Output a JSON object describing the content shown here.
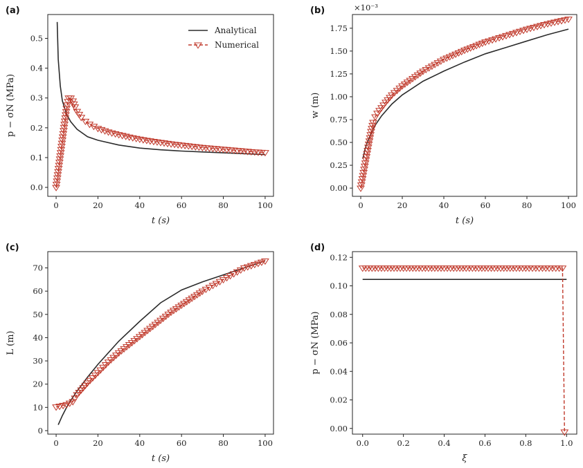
{
  "style": {
    "analytical_color": "#2b2b2b",
    "numerical_color": "#c0392b"
  },
  "chart_data": [
    {
      "panel": "(a)",
      "type": "line",
      "xlabel": "t (s)",
      "ylabel": "p − σN (MPa)",
      "xlim": [
        -4,
        104
      ],
      "ylim": [
        -0.03,
        0.58
      ],
      "xticks": [
        0,
        20,
        40,
        60,
        80,
        100
      ],
      "yticks": [
        0.0,
        0.1,
        0.2,
        0.3,
        0.4,
        0.5
      ],
      "ytick_labels": [
        "0.0",
        "0.1",
        "0.2",
        "0.3",
        "0.4",
        "0.5"
      ],
      "legend": {
        "position": "top-right",
        "entries": [
          "Analytical",
          "Numerical"
        ]
      },
      "series": [
        {
          "name": "Analytical",
          "style": "solid",
          "x": [
            0.5,
            1,
            2,
            3,
            5,
            7,
            10,
            15,
            20,
            30,
            40,
            50,
            60,
            70,
            80,
            90,
            100
          ],
          "y": [
            0.555,
            0.43,
            0.34,
            0.29,
            0.245,
            0.22,
            0.195,
            0.17,
            0.158,
            0.142,
            0.132,
            0.126,
            0.122,
            0.119,
            0.116,
            0.113,
            0.11
          ]
        },
        {
          "name": "Numerical",
          "style": "dashed-triangle",
          "x": [
            0,
            5,
            6,
            7,
            8,
            9,
            10,
            12,
            14,
            16,
            18,
            20,
            25,
            30,
            35,
            40,
            45,
            50,
            55,
            60,
            65,
            70,
            75,
            80,
            85,
            90,
            95,
            100
          ],
          "y": [
            0.0,
            0.265,
            0.3,
            0.3,
            0.29,
            0.27,
            0.255,
            0.235,
            0.222,
            0.212,
            0.205,
            0.198,
            0.186,
            0.177,
            0.169,
            0.162,
            0.156,
            0.151,
            0.146,
            0.142,
            0.138,
            0.134,
            0.131,
            0.128,
            0.125,
            0.122,
            0.119,
            0.117
          ]
        }
      ]
    },
    {
      "panel": "(b)",
      "type": "line",
      "xlabel": "t (s)",
      "ylabel": "w (m)",
      "scale_label": "×10⁻³",
      "xlim": [
        -4,
        104
      ],
      "ylim": [
        -0.09,
        1.9
      ],
      "xticks": [
        0,
        20,
        40,
        60,
        80,
        100
      ],
      "yticks": [
        0.0,
        0.25,
        0.5,
        0.75,
        1.0,
        1.25,
        1.5,
        1.75
      ],
      "ytick_labels": [
        "0.00",
        "0.25",
        "0.50",
        "0.75",
        "1.00",
        "1.25",
        "1.50",
        "1.75"
      ],
      "series": [
        {
          "name": "Analytical",
          "style": "solid",
          "x": [
            1,
            2,
            3,
            5,
            7,
            10,
            15,
            20,
            30,
            40,
            50,
            60,
            70,
            80,
            90,
            100
          ],
          "y": [
            0.32,
            0.42,
            0.49,
            0.6,
            0.69,
            0.79,
            0.92,
            1.02,
            1.17,
            1.28,
            1.38,
            1.47,
            1.54,
            1.61,
            1.68,
            1.74
          ]
        },
        {
          "name": "Numerical",
          "style": "dashed-triangle",
          "x": [
            0,
            5,
            6,
            7,
            8,
            10,
            12,
            15,
            20,
            25,
            30,
            40,
            50,
            60,
            70,
            80,
            90,
            100
          ],
          "y": [
            0.0,
            0.62,
            0.72,
            0.78,
            0.82,
            0.88,
            0.94,
            1.02,
            1.12,
            1.2,
            1.28,
            1.41,
            1.51,
            1.6,
            1.67,
            1.74,
            1.8,
            1.85
          ]
        }
      ]
    },
    {
      "panel": "(c)",
      "type": "line",
      "xlabel": "t (s)",
      "ylabel": "L (m)",
      "xlim": [
        -4,
        104
      ],
      "ylim": [
        -1.5,
        77
      ],
      "xticks": [
        0,
        20,
        40,
        60,
        80,
        100
      ],
      "yticks": [
        0,
        10,
        20,
        30,
        40,
        50,
        60,
        70
      ],
      "ytick_labels": [
        "0",
        "10",
        "20",
        "30",
        "40",
        "50",
        "60",
        "70"
      ],
      "series": [
        {
          "name": "Analytical",
          "style": "solid",
          "x": [
            1,
            2,
            3,
            5,
            7,
            10,
            15,
            20,
            30,
            40,
            50,
            60,
            70,
            80,
            90,
            100
          ],
          "y": [
            2.5,
            4.5,
            6.5,
            10.0,
            13.0,
            17.0,
            23.0,
            28.5,
            38.5,
            47.0,
            55.0,
            60.5,
            64.0,
            67.0,
            70.0,
            73.0
          ]
        },
        {
          "name": "Numerical",
          "style": "dashed-triangle",
          "x": [
            0,
            5,
            8,
            10,
            15,
            20,
            25,
            30,
            35,
            40,
            45,
            50,
            55,
            60,
            65,
            70,
            75,
            80,
            85,
            90,
            95,
            100
          ],
          "y": [
            10.2,
            11.2,
            12.5,
            15.5,
            20.5,
            25.0,
            29.5,
            33.5,
            37.0,
            40.5,
            44.0,
            47.5,
            51.0,
            54.0,
            57.0,
            60.0,
            62.5,
            65.0,
            67.5,
            70.0,
            71.5,
            73.0
          ]
        }
      ]
    },
    {
      "panel": "(d)",
      "type": "line",
      "xlabel": "ξ",
      "ylabel": "p − σN (MPa)",
      "xlim": [
        -0.05,
        1.05
      ],
      "ylim": [
        -0.004,
        0.124
      ],
      "xticks": [
        0.0,
        0.2,
        0.4,
        0.6,
        0.8,
        1.0
      ],
      "xtick_labels": [
        "0.0",
        "0.2",
        "0.4",
        "0.6",
        "0.8",
        "1.0"
      ],
      "yticks": [
        0.0,
        0.02,
        0.04,
        0.06,
        0.08,
        0.1,
        0.12
      ],
      "ytick_labels": [
        "0.00",
        "0.02",
        "0.04",
        "0.06",
        "0.08",
        "0.10",
        "0.12"
      ],
      "series": [
        {
          "name": "Analytical",
          "style": "solid",
          "x": [
            0.0,
            1.0
          ],
          "y": [
            0.1045,
            0.1045
          ]
        },
        {
          "name": "Numerical",
          "style": "dashed-triangle",
          "x": [
            0.0,
            0.2,
            0.4,
            0.6,
            0.8,
            0.98,
            0.99
          ],
          "y": [
            0.1125,
            0.1125,
            0.1125,
            0.1125,
            0.1125,
            0.1125,
            -0.0025
          ]
        }
      ]
    }
  ]
}
